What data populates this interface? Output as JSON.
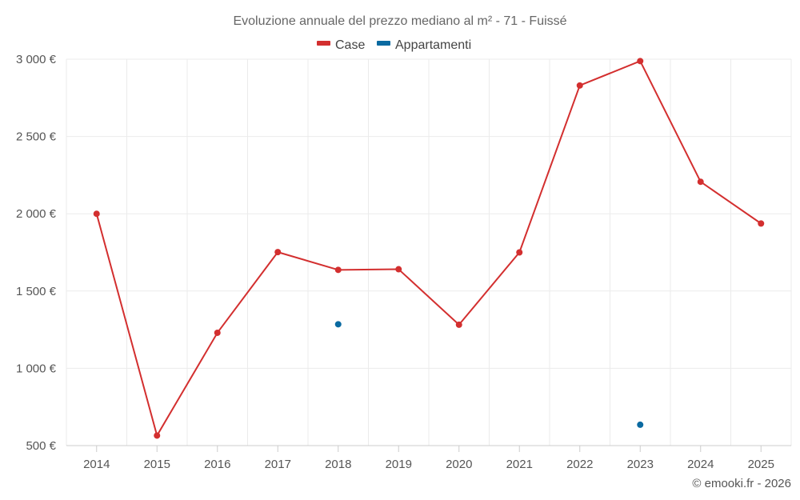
{
  "chart_data": {
    "type": "line",
    "title": "Evoluzione annuale del prezzo mediano al m² - 71 - Fuissé",
    "categories": [
      "2014",
      "2015",
      "2016",
      "2017",
      "2018",
      "2019",
      "2020",
      "2021",
      "2022",
      "2023",
      "2024",
      "2025"
    ],
    "series": [
      {
        "name": "Case",
        "color": "#d32f2f",
        "values": [
          2000,
          565,
          1230,
          1752,
          1637,
          1641,
          1282,
          1750,
          2830,
          2988,
          2207,
          1937
        ]
      },
      {
        "name": "Appartamenti",
        "color": "#0a6aa1",
        "values": [
          null,
          null,
          null,
          null,
          1285,
          null,
          null,
          null,
          null,
          635,
          null,
          null
        ]
      }
    ],
    "ylim": [
      500,
      3000
    ],
    "yticks": [
      500,
      1000,
      1500,
      2000,
      2500,
      3000
    ],
    "ytick_labels": [
      "500 €",
      "1 000 €",
      "1 500 €",
      "2 000 €",
      "2 500 €",
      "3 000 €"
    ],
    "xlabel": "",
    "ylabel": "",
    "grid": true,
    "legend_position": "top-center"
  },
  "credit": "© emooki.fr - 2026"
}
